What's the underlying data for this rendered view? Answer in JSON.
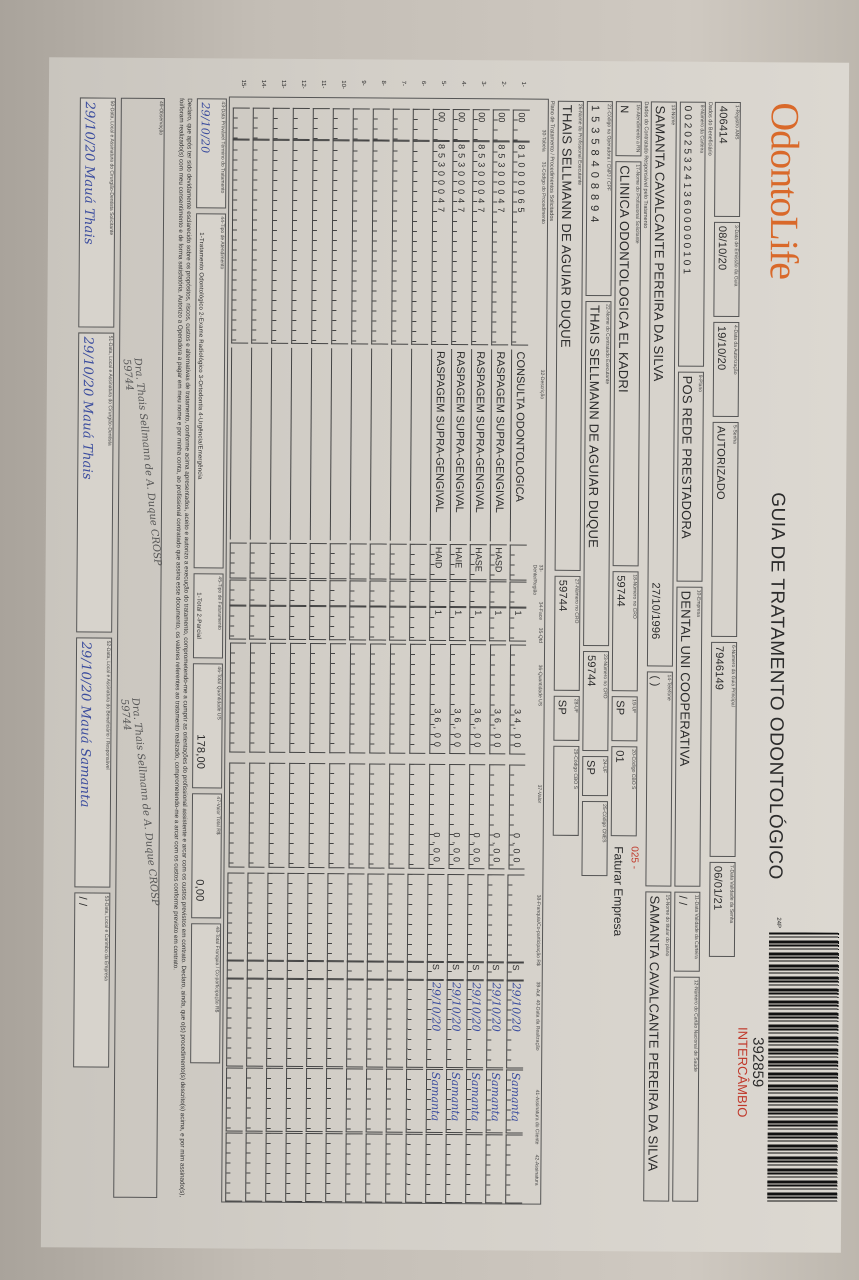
{
  "header": {
    "logo_text": "OdontoLife",
    "title": "GUIA DE TRATAMENTO ODONTOLÓGICO",
    "form_code": "24P",
    "guide_number": "392859",
    "guide_type": "INTERCÂMBIO",
    "billing_note_code": "025 -",
    "billing_note": "Faturar Empresa"
  },
  "fields": {
    "f1": {
      "label": "1-Registro ANS",
      "value": "406414"
    },
    "f3": {
      "label": "3-Data de Emissão da Guia",
      "value": "08/10/20"
    },
    "f4": {
      "label": "4-Data da Autorização",
      "value": "19/10/20"
    },
    "f5": {
      "label": "5-Senha",
      "value": "AUTORIZADO"
    },
    "f6": {
      "label": "6-Número da Guia Principal",
      "value": "7946149"
    },
    "f7": {
      "label": "7-Data Validade da Senha",
      "value": "06/01/21"
    },
    "section_beneficiary": "Dados do Beneficiário",
    "f8": {
      "label": "8-Número da Carteira",
      "value": "00202532413600000101"
    },
    "f9": {
      "label": "9-Plano",
      "value": "POS REDE PRESTADORA"
    },
    "f10": {
      "label": "10-Empresa",
      "value": "DENTAL UNI  COOPERATIVA"
    },
    "f11": {
      "label": "11-Data Validade da Carteira",
      "value": "  /  /  "
    },
    "f12": {
      "label": "12-Número do Cartão Nacional de Saúde",
      "value": ""
    },
    "f13": {
      "label": "13-Nome",
      "value": "SAMANTA CAVALCANTE PEREIRA DA SILVA",
      "birth_date": "27/10/1996"
    },
    "f14": {
      "label": "14-Telefone",
      "value": "(    )"
    },
    "f15": {
      "label": "15-Nome do titular do plano",
      "value": "SAMANTA CAVALCANTE PEREIRA DA SILVA"
    },
    "section_contracted": "Dados do Contratado Responsável pelo Tratamento",
    "f16": {
      "label": "16-Atendimento a RN",
      "value": "N"
    },
    "f17": {
      "label": "17-Nome do Profissional Solicitante",
      "value": "CLINICA ODONTOLOGICA EL KADRI"
    },
    "f18": {
      "label": "18-Número no CRO",
      "value": "59744"
    },
    "f19": {
      "label": "19-UF",
      "value": "SP"
    },
    "f20": {
      "label": "20-Código CBO S",
      "value": "01"
    },
    "f21": {
      "label": "21-Código na Operadora / CNPJ / CPF",
      "value": "15358408894"
    },
    "f22": {
      "label": "22-Nome do Contratado Executante",
      "value": "THAIS SELLMANN DE AGUIAR DUQUE"
    },
    "f23": {
      "label": "23-Número no CRO",
      "value": "59744"
    },
    "f24": {
      "label": "24-UF",
      "value": "SP"
    },
    "f25": {
      "label": "25-Código CNES",
      "value": ""
    },
    "f26": {
      "label": "26-Nome do Profissional Executante",
      "value": "THAIS SELLMANN DE AGUIAR DUQUE"
    },
    "f27": {
      "label": "27-Número no CRO",
      "value": "59744"
    },
    "f28": {
      "label": "28-UF",
      "value": "SP"
    },
    "f29": {
      "label": "29-Código CBO S",
      "value": ""
    }
  },
  "procedures": {
    "section_title": "Plano de Tratamento / Procedimentos Solicitados",
    "columns": [
      "30-Tabela",
      "31-Código do Procedimento",
      "32-Descrição",
      "33-Dente/Região",
      "34-Face",
      "35-Qtd",
      "36-Quantidade US",
      "37-Valor",
      "38-Franquia/Co-participação R$",
      "39-Aut",
      "40-Data da Realização",
      "41-Assinatura do Cliente",
      "42-Assinatura"
    ],
    "rows": [
      {
        "num": "1-",
        "table": "00",
        "code": "81000065",
        "description": "CONSULTA ODONTOLOGICA",
        "tooth": "",
        "face": "",
        "qty": "1",
        "us": "34,00",
        "value": "0,00",
        "franchise": "",
        "aut": "S",
        "date": "29/10/20",
        "signature": "Samanta"
      },
      {
        "num": "2-",
        "table": "00",
        "code": "85300047",
        "description": "RASPAGEM SUPRA-GENGIVAL",
        "tooth": "HASD",
        "face": "",
        "qty": "1",
        "us": "36,00",
        "value": "0,00",
        "franchise": "",
        "aut": "S",
        "date": "29/10/20",
        "signature": "Samanta"
      },
      {
        "num": "3-",
        "table": "00",
        "code": "85300047",
        "description": "RASPAGEM SUPRA-GENGIVAL",
        "tooth": "HASE",
        "face": "",
        "qty": "1",
        "us": "36,00",
        "value": "0,00",
        "franchise": "",
        "aut": "S",
        "date": "29/10/20",
        "signature": "Samanta"
      },
      {
        "num": "4-",
        "table": "00",
        "code": "85300047",
        "description": "RASPAGEM SUPRA-GENGIVAL",
        "tooth": "HAIE",
        "face": "",
        "qty": "1",
        "us": "36,00",
        "value": "0,00",
        "franchise": "",
        "aut": "S",
        "date": "29/10/20",
        "signature": "Samanta"
      },
      {
        "num": "5-",
        "table": "00",
        "code": "85300047",
        "description": "RASPAGEM SUPRA-GENGIVAL",
        "tooth": "HAID",
        "face": "",
        "qty": "1",
        "us": "36,00",
        "value": "0,00",
        "franchise": "",
        "aut": "S",
        "date": "29/10/20",
        "signature": "Samanta"
      },
      {
        "num": "6-"
      },
      {
        "num": "7-"
      },
      {
        "num": "8-"
      },
      {
        "num": "9-"
      },
      {
        "num": "10-"
      },
      {
        "num": "11-"
      },
      {
        "num": "12-"
      },
      {
        "num": "13-"
      },
      {
        "num": "14-"
      },
      {
        "num": "15-"
      }
    ]
  },
  "footer": {
    "f43": {
      "label": "43-Data Provável Término do Tratamento",
      "value": "29/10/20"
    },
    "f44": {
      "label": "44-Tipo de Atendimento",
      "options": "1-Tratamento Odontológico  2-Exame Radiológico  3-Ortodontia  4-Urgência/Emergência"
    },
    "f45": {
      "label": "45-Tipo de Faturamento",
      "options": "1-Total  2-Parcial"
    },
    "f46": {
      "label": "46-Total Quantidade US",
      "value": "178,00"
    },
    "f47": {
      "label": "47-Valor Total R$",
      "value": "0,00"
    },
    "f48": {
      "label": "48-Total Franquia / Co-participação R$",
      "value": ""
    },
    "declaration": "Declaro, que após ter sido devidamente esclarecido sobre os propósitos, riscos, custos e alternativas de tratamento, conforme acima apresentados, aceito e autorizo a execução do tratamento, comprometendo-me a cumprir as orientações do profissional assistente e arcar com os custos previstos em contrato. Declaro, ainda, que o(s) procedimento(s) descrito(s) acima, e por mim assinado(s), foi/foram realizado(s) com meu consentimento e de forma satisfatória. Autorizo a Operadora a pagar em meu nome e por minha conta, ao profissional contratado que assina esse documento, os valores referentes ao tratamento realizado, comprometendo-me a arcar com os custos conforme previsto em contrato.",
    "f49": {
      "label": "49-Observação",
      "value": ""
    },
    "f50": {
      "label": "50-Data, Local e Assinatura do Cirurgião-Dentista Solicitante",
      "value": "29/10/20 Mauá Thais"
    },
    "f51": {
      "label": "51-Data, Local e Assinatura do Cirurgião-Dentista",
      "value": "29/10/20 Mauá Thais"
    },
    "f52": {
      "label": "52-Data, Local e Assinatura do Beneficiário / Responsável",
      "value": "29/10/20 Mauá Samanta"
    },
    "f53": {
      "label": "53-Data, Local e Carimbo da Empresa",
      "value": "  /  /  "
    },
    "stamp": "Dra. Thais Sellmann de A. Duque CROSP 59744"
  },
  "colors": {
    "handwriting": "#3a4c9e",
    "accent_red": "#c0392b",
    "logo_orange": "#d9692a"
  }
}
